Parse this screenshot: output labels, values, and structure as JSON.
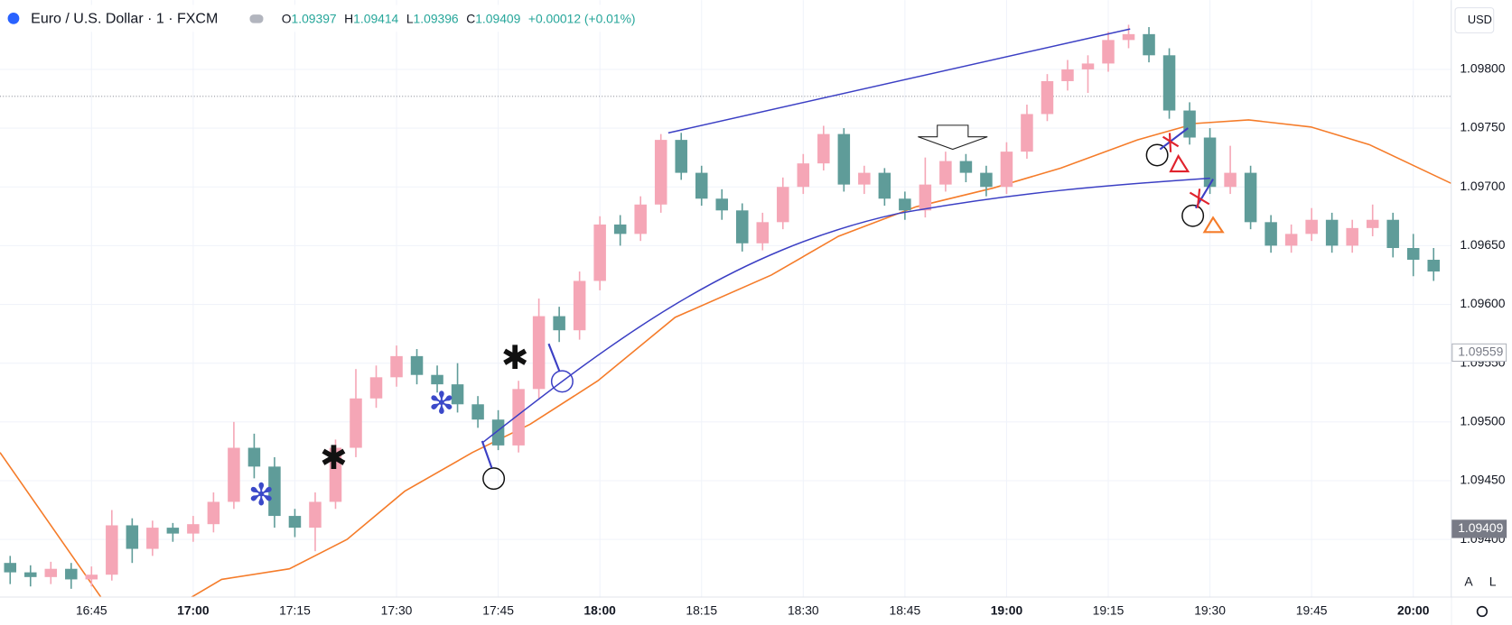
{
  "header": {
    "title": "Euro / U.S. Dollar · 1 · FXCM",
    "fields": [
      [
        "O",
        "1.09397"
      ],
      [
        "H",
        "1.09414"
      ],
      [
        "L",
        "1.09396"
      ],
      [
        "C",
        "1.09409"
      ]
    ],
    "change": "+0.00012 (+0.01%)"
  },
  "toolbar": {
    "currency": "USD",
    "auto": "A",
    "log": "L"
  },
  "chart_data": {
    "type": "candlestick",
    "up_color": "#f5a6b6",
    "down_color": "#5f9c99",
    "grid": true,
    "xlim": [
      31.5,
      245.6
    ],
    "ylim": [
      1.09351,
      1.09859
    ],
    "xticks": [
      {
        "value": 45,
        "label": "16:45"
      },
      {
        "value": 60,
        "label": "17:00"
      },
      {
        "value": 75,
        "label": "17:15"
      },
      {
        "value": 90,
        "label": "17:30"
      },
      {
        "value": 105,
        "label": "17:45"
      },
      {
        "value": 120,
        "label": "18:00"
      },
      {
        "value": 135,
        "label": "18:15"
      },
      {
        "value": 150,
        "label": "18:30"
      },
      {
        "value": 165,
        "label": "18:45"
      },
      {
        "value": 180,
        "label": "19:00"
      },
      {
        "value": 195,
        "label": "19:15"
      },
      {
        "value": 210,
        "label": "19:30"
      },
      {
        "value": 225,
        "label": "19:45"
      },
      {
        "value": 240,
        "label": "20:00"
      }
    ],
    "yticks": [
      {
        "value": 1.094,
        "label": "1.09400"
      },
      {
        "value": 1.0945,
        "label": "1.09450"
      },
      {
        "value": 1.095,
        "label": "1.09500"
      },
      {
        "value": 1.0955,
        "label": "1.09550"
      },
      {
        "value": 1.096,
        "label": "1.09600"
      },
      {
        "value": 1.0965,
        "label": "1.09650"
      },
      {
        "value": 1.097,
        "label": "1.09700"
      },
      {
        "value": 1.0975,
        "label": "1.09750"
      },
      {
        "value": 1.098,
        "label": "1.09800"
      }
    ],
    "x": [
      33,
      36,
      39,
      42,
      45,
      48,
      51,
      54,
      57,
      60,
      63,
      66,
      69,
      72,
      75,
      78,
      81,
      84,
      87,
      90,
      93,
      96,
      99,
      102,
      105,
      108,
      111,
      114,
      117,
      120,
      123,
      126,
      129,
      132,
      135,
      138,
      141,
      144,
      147,
      150,
      153,
      156,
      159,
      162,
      165,
      168,
      171,
      174,
      177,
      180,
      183,
      186,
      189,
      192,
      195,
      198,
      201,
      204,
      207,
      210,
      213,
      216,
      219,
      222,
      225,
      228,
      231,
      234,
      237,
      240,
      243
    ],
    "ohlc": [
      [
        1.0938,
        1.09386,
        1.09362,
        1.09372
      ],
      [
        1.09372,
        1.09378,
        1.0936,
        1.09368
      ],
      [
        1.09368,
        1.09381,
        1.09362,
        1.09375
      ],
      [
        1.09375,
        1.0938,
        1.09358,
        1.09366
      ],
      [
        1.09366,
        1.09377,
        1.0936,
        1.0937
      ],
      [
        1.0937,
        1.09425,
        1.09365,
        1.09412
      ],
      [
        1.09412,
        1.09418,
        1.0938,
        1.09392
      ],
      [
        1.09392,
        1.09416,
        1.09386,
        1.0941
      ],
      [
        1.0941,
        1.09414,
        1.09398,
        1.09405
      ],
      [
        1.09405,
        1.0942,
        1.09398,
        1.09413
      ],
      [
        1.09413,
        1.0944,
        1.09406,
        1.09432
      ],
      [
        1.09432,
        1.095,
        1.09426,
        1.09478
      ],
      [
        1.09478,
        1.0949,
        1.09452,
        1.09462
      ],
      [
        1.09462,
        1.0947,
        1.0941,
        1.0942
      ],
      [
        1.0942,
        1.09426,
        1.09402,
        1.0941
      ],
      [
        1.0941,
        1.0944,
        1.0939,
        1.09432
      ],
      [
        1.09432,
        1.09485,
        1.09426,
        1.09478
      ],
      [
        1.09478,
        1.09545,
        1.0947,
        1.0952
      ],
      [
        1.0952,
        1.09548,
        1.09512,
        1.09538
      ],
      [
        1.09538,
        1.09565,
        1.0953,
        1.09556
      ],
      [
        1.09556,
        1.09562,
        1.09532,
        1.0954
      ],
      [
        1.0954,
        1.09548,
        1.09525,
        1.09532
      ],
      [
        1.09532,
        1.0955,
        1.09508,
        1.09515
      ],
      [
        1.09515,
        1.09522,
        1.09495,
        1.09502
      ],
      [
        1.09502,
        1.0951,
        1.09476,
        1.0948
      ],
      [
        1.0948,
        1.09535,
        1.09474,
        1.09528
      ],
      [
        1.09528,
        1.09605,
        1.0952,
        1.0959
      ],
      [
        1.0959,
        1.09598,
        1.09568,
        1.09578
      ],
      [
        1.09578,
        1.09628,
        1.0957,
        1.0962
      ],
      [
        1.0962,
        1.09675,
        1.09612,
        1.09668
      ],
      [
        1.09668,
        1.09676,
        1.0965,
        1.0966
      ],
      [
        1.0966,
        1.09692,
        1.09654,
        1.09685
      ],
      [
        1.09685,
        1.09745,
        1.09678,
        1.0974
      ],
      [
        1.0974,
        1.09746,
        1.09706,
        1.09712
      ],
      [
        1.09712,
        1.09718,
        1.09684,
        1.0969
      ],
      [
        1.0969,
        1.09698,
        1.09672,
        1.0968
      ],
      [
        1.0968,
        1.09686,
        1.09645,
        1.09652
      ],
      [
        1.09652,
        1.09678,
        1.09646,
        1.0967
      ],
      [
        1.0967,
        1.09708,
        1.09664,
        1.097
      ],
      [
        1.097,
        1.09728,
        1.09694,
        1.0972
      ],
      [
        1.0972,
        1.09752,
        1.09714,
        1.09745
      ],
      [
        1.09745,
        1.0975,
        1.09696,
        1.09702
      ],
      [
        1.09702,
        1.09718,
        1.09694,
        1.09712
      ],
      [
        1.09712,
        1.09716,
        1.09684,
        1.0969
      ],
      [
        1.0969,
        1.09696,
        1.09672,
        1.0968
      ],
      [
        1.0968,
        1.09725,
        1.09674,
        1.09702
      ],
      [
        1.09702,
        1.0973,
        1.09696,
        1.09722
      ],
      [
        1.09722,
        1.09728,
        1.09704,
        1.09712
      ],
      [
        1.09712,
        1.09718,
        1.09692,
        1.097
      ],
      [
        1.097,
        1.09738,
        1.09694,
        1.0973
      ],
      [
        1.0973,
        1.0977,
        1.09724,
        1.09762
      ],
      [
        1.09762,
        1.09796,
        1.09756,
        1.0979
      ],
      [
        1.0979,
        1.09808,
        1.09782,
        1.098
      ],
      [
        1.098,
        1.09812,
        1.0978,
        1.09805
      ],
      [
        1.09805,
        1.09832,
        1.09798,
        1.09825
      ],
      [
        1.09825,
        1.09838,
        1.09818,
        1.0983
      ],
      [
        1.0983,
        1.09836,
        1.09806,
        1.09812
      ],
      [
        1.09812,
        1.09818,
        1.09758,
        1.09765
      ],
      [
        1.09765,
        1.09772,
        1.09736,
        1.09742
      ],
      [
        1.09742,
        1.0975,
        1.09694,
        1.097
      ],
      [
        1.097,
        1.09735,
        1.09694,
        1.09712
      ],
      [
        1.09712,
        1.09718,
        1.09664,
        1.0967
      ],
      [
        1.0967,
        1.09676,
        1.09644,
        1.0965
      ],
      [
        1.0965,
        1.09668,
        1.09644,
        1.0966
      ],
      [
        1.0966,
        1.09682,
        1.09654,
        1.09672
      ],
      [
        1.09672,
        1.09678,
        1.09644,
        1.0965
      ],
      [
        1.0965,
        1.09672,
        1.09644,
        1.09665
      ],
      [
        1.09665,
        1.09685,
        1.09658,
        1.09672
      ],
      [
        1.09672,
        1.09678,
        1.0964,
        1.09648
      ],
      [
        1.09648,
        1.0966,
        1.09624,
        1.09638
      ],
      [
        1.09638,
        1.09648,
        1.0962,
        1.09628
      ]
    ],
    "ma": {
      "color": "#f57c2a",
      "x": [
        31.5,
        47.1,
        59.2,
        64.2,
        74.2,
        82.7,
        91.2,
        101.2,
        109.7,
        119.7,
        131.1,
        145.3,
        155.2,
        166.6,
        178.0,
        188.0,
        199.3,
        207.9,
        215.7,
        224.9,
        233.5,
        245.6
      ],
      "values": [
        1.09474,
        1.09345,
        1.09349,
        1.09366,
        1.09375,
        1.094,
        1.09441,
        1.09474,
        1.09498,
        1.09535,
        1.09589,
        1.09625,
        1.09658,
        1.09683,
        1.09699,
        1.09716,
        1.0974,
        1.09754,
        1.09757,
        1.09751,
        1.09736,
        1.09703
      ]
    },
    "price_labels": [
      {
        "value": 1.09559,
        "color": "#ffffff"
      },
      {
        "value": 1.09409,
        "color": "#787b86"
      }
    ]
  }
}
